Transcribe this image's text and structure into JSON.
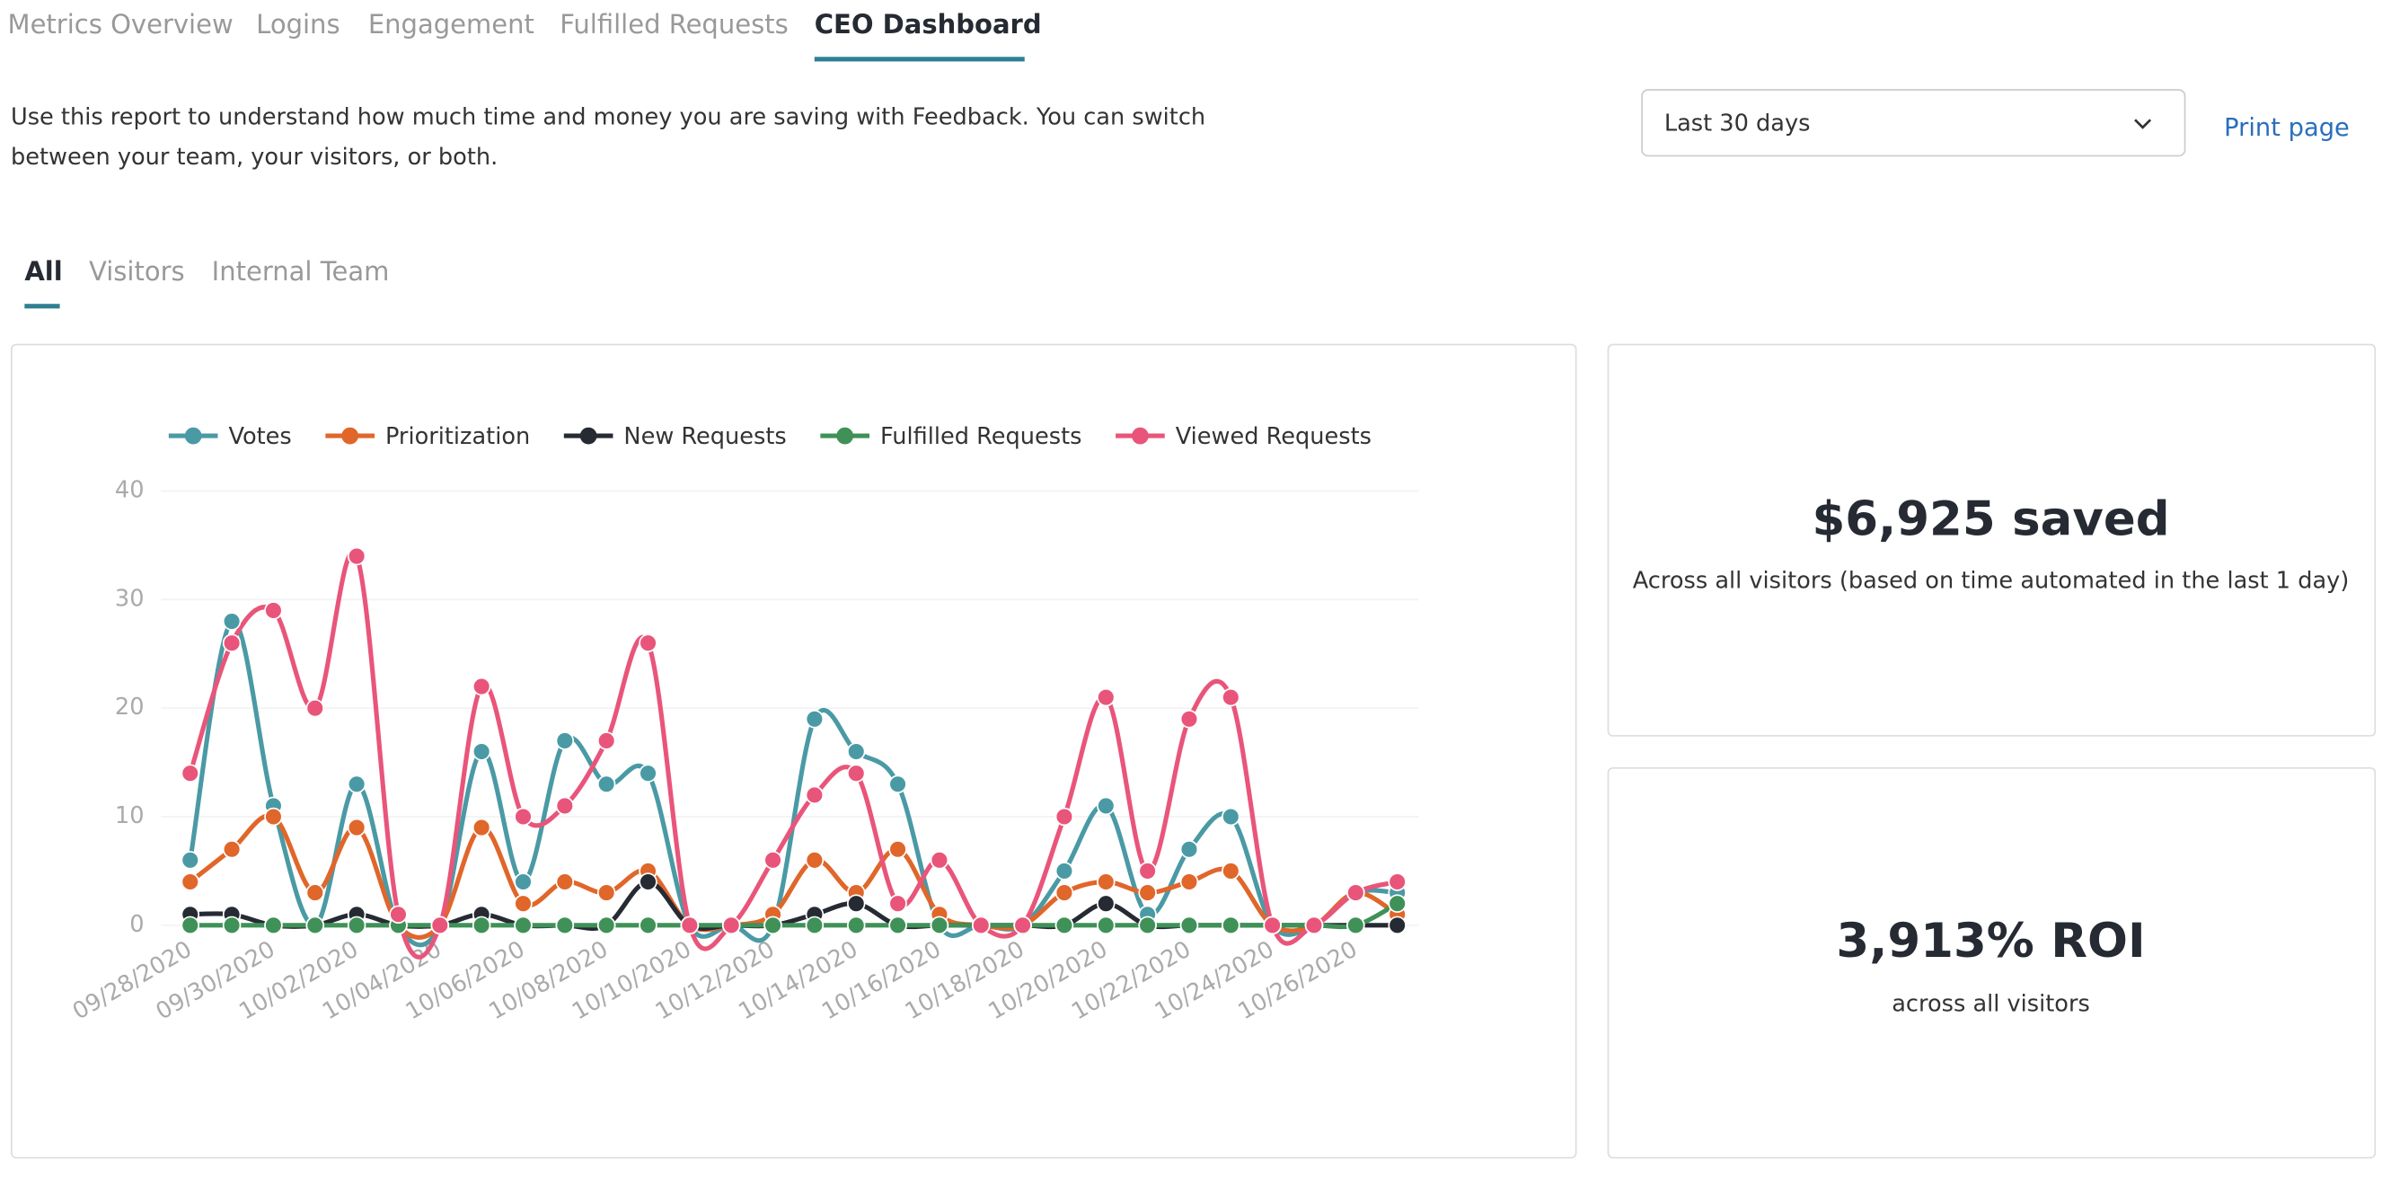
{
  "tabs": [
    "Metrics Overview",
    "Logins",
    "Engagement",
    "Fulfilled Requests",
    "CEO Dashboard"
  ],
  "description": [
    "Use this report to understand how much time and money you are saving with Feedback. You can switch",
    "between your team, your visitors, or both."
  ],
  "dropdown": "Last 30 days",
  "print": "Print page",
  "subtabs": [
    "All",
    "Visitors",
    "Internal Team"
  ],
  "cards": [
    {
      "value": "$6,925 saved",
      "caption": "Across all visitors (based on time automated in the last 1 day)"
    },
    {
      "value": "3,913% ROI",
      "caption": "across all visitors"
    }
  ],
  "chart_data": {
    "type": "line",
    "categories": [
      "09/28/2020",
      null,
      "09/30/2020",
      null,
      "10/02/2020",
      null,
      "10/04/2020",
      null,
      "10/06/2020",
      null,
      "10/08/2020",
      null,
      "10/10/2020",
      null,
      "10/12/2020",
      null,
      "10/14/2020",
      null,
      "10/16/2020",
      null,
      "10/18/2020",
      null,
      "10/20/2020",
      null,
      "10/22/2020",
      null,
      "10/24/2020",
      null,
      "10/26/2020",
      null
    ],
    "series": [
      {
        "name": "Votes",
        "color": "#4a9aa5",
        "values": [
          6,
          28,
          11,
          0,
          13,
          0,
          0,
          16,
          4,
          17,
          13,
          14,
          0,
          0,
          0,
          19,
          16,
          13,
          0,
          0,
          0,
          5,
          11,
          1,
          7,
          10,
          0,
          0,
          3,
          3
        ]
      },
      {
        "name": "Prioritization",
        "color": "#e0662a",
        "values": [
          4,
          7,
          10,
          3,
          9,
          0,
          0,
          9,
          2,
          4,
          3,
          5,
          0,
          0,
          1,
          6,
          3,
          7,
          1,
          0,
          0,
          3,
          4,
          3,
          4,
          5,
          0,
          0,
          3,
          1
        ]
      },
      {
        "name": "New Requests",
        "color": "#262a33",
        "values": [
          1,
          1,
          0,
          0,
          1,
          0,
          0,
          1,
          0,
          0,
          0,
          4,
          0,
          0,
          0,
          1,
          2,
          0,
          0,
          0,
          0,
          0,
          2,
          0,
          0,
          0,
          0,
          0,
          0,
          0
        ]
      },
      {
        "name": "Fulfilled Requests",
        "color": "#3f9158",
        "values": [
          0,
          0,
          0,
          0,
          0,
          0,
          0,
          0,
          0,
          0,
          0,
          0,
          0,
          0,
          0,
          0,
          0,
          0,
          0,
          0,
          0,
          0,
          0,
          0,
          0,
          0,
          0,
          0,
          0,
          2
        ]
      },
      {
        "name": "Viewed Requests",
        "color": "#e9557a",
        "values": [
          14,
          26,
          29,
          20,
          34,
          1,
          0,
          22,
          10,
          11,
          17,
          26,
          0,
          0,
          6,
          12,
          14,
          2,
          6,
          0,
          0,
          10,
          21,
          5,
          19,
          21,
          0,
          0,
          3,
          4
        ]
      }
    ],
    "ylim": [
      0,
      40
    ],
    "yticks": [
      0,
      10,
      20,
      30,
      40
    ],
    "grid": true,
    "legend": "top"
  }
}
